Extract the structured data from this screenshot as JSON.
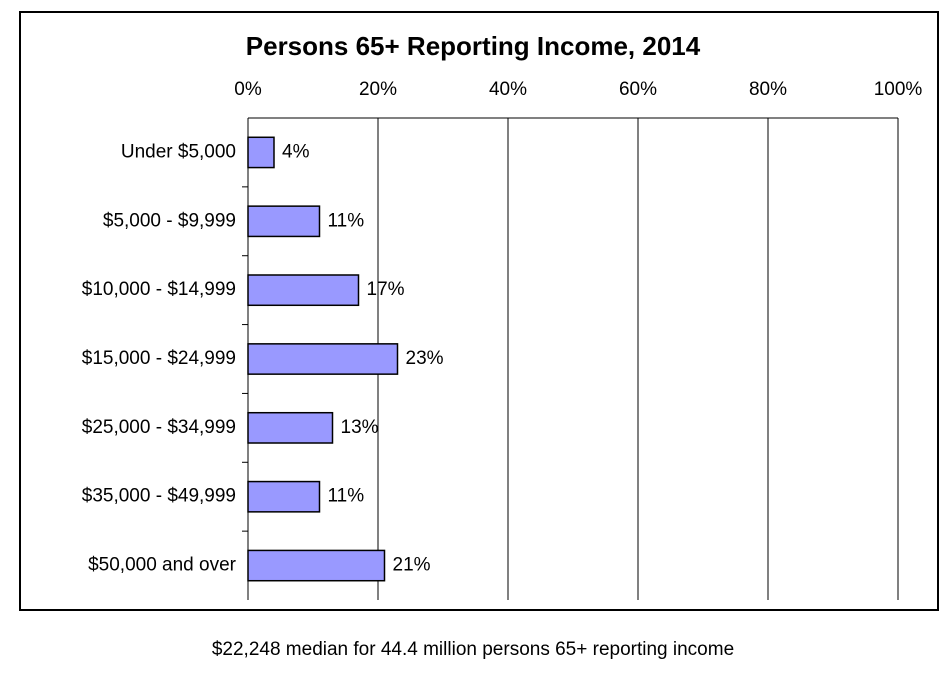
{
  "chart_data": {
    "type": "barh",
    "title": "Persons 65+ Reporting Income, 2014",
    "categories": [
      "Under $5,000",
      "$5,000 - $9,999",
      "$10,000 - $14,999",
      "$15,000 - $24,999",
      "$25,000 - $34,999",
      "$35,000 - $49,999",
      "$50,000 and over"
    ],
    "values": [
      4,
      11,
      17,
      23,
      13,
      11,
      21
    ],
    "value_labels": [
      "4%",
      "11%",
      "17%",
      "23%",
      "13%",
      "11%",
      "21%"
    ],
    "color": "#9999ff",
    "xlim": [
      0,
      100
    ],
    "xticks": [
      {
        "value": 0,
        "label": "0%"
      },
      {
        "value": 20,
        "label": "20%"
      },
      {
        "value": 40,
        "label": "40%"
      },
      {
        "value": 60,
        "label": "60%"
      },
      {
        "value": 80,
        "label": "80%"
      },
      {
        "value": 100,
        "label": "100%"
      }
    ],
    "grid": true,
    "note": "$22,248 median for 44.4 million persons 65+ reporting income"
  }
}
